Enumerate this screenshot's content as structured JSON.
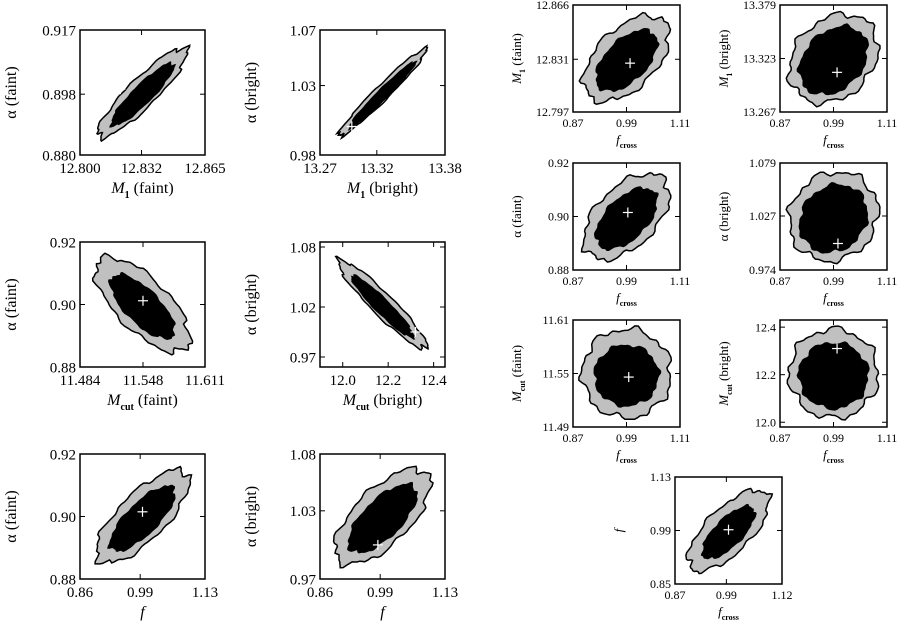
{
  "colors": {
    "outer_region": "#c0c0c0",
    "inner_region": "#000000",
    "marker": "#ffffff",
    "frame": "#000000"
  },
  "chart_data": [
    {
      "type": "contour",
      "id": "p1",
      "xlabel_main": "M",
      "xlabel_sub": "1",
      "xlabel_tail": " (faint)",
      "ylabel_main": "α",
      "ylabel_sub": "",
      "ylabel_tail": " (faint)",
      "xlim": [
        12.8,
        12.865
      ],
      "ylim": [
        0.88,
        0.917
      ],
      "xticks": [
        "12.800",
        "12.832",
        "12.865"
      ],
      "yticks": [
        "0.880",
        "0.898",
        "0.917"
      ],
      "marker": [
        12.821,
        0.8995
      ],
      "corr": 0.93,
      "outer_scale": 1.0,
      "inner_scale": 0.7
    },
    {
      "type": "contour",
      "id": "p2",
      "xlabel_main": "M",
      "xlabel_sub": "1",
      "xlabel_tail": " (bright)",
      "ylabel_main": "α",
      "ylabel_sub": "",
      "ylabel_tail": " (bright)",
      "xlim": [
        13.27,
        13.38
      ],
      "ylim": [
        0.98,
        1.07
      ],
      "xticks": [
        "13.27",
        "13.32",
        "13.38"
      ],
      "yticks": [
        "0.98",
        "1.03",
        "1.07"
      ],
      "marker": [
        13.298,
        1.0005
      ],
      "corr": 0.985,
      "outer_scale": 1.0,
      "inner_scale": 0.75
    },
    {
      "type": "contour",
      "id": "p3",
      "xlabel_main": "M",
      "xlabel_sub": "cut",
      "xlabel_tail": " (faint)",
      "ylabel_main": "α",
      "ylabel_sub": "",
      "ylabel_tail": " (faint)",
      "xlim": [
        11.484,
        11.611
      ],
      "ylim": [
        0.88,
        0.92
      ],
      "xticks": [
        "11.484",
        "11.548",
        "11.611"
      ],
      "yticks": [
        "0.88",
        "0.90",
        "0.92"
      ],
      "marker": [
        11.548,
        0.9012
      ],
      "corr": -0.75,
      "outer_scale": 1.0,
      "inner_scale": 0.68
    },
    {
      "type": "contour",
      "id": "p4",
      "xlabel_main": "M",
      "xlabel_sub": "cut",
      "xlabel_tail": " (bright)",
      "ylabel_main": "α",
      "ylabel_sub": "",
      "ylabel_tail": " (bright)",
      "xlim": [
        11.9,
        12.45
      ],
      "ylim": [
        0.96,
        1.085
      ],
      "xticks": [
        "12.0",
        "12.2",
        "12.4"
      ],
      "yticks": [
        "0.97",
        "1.02",
        "1.08"
      ],
      "marker": [
        12.32,
        0.995
      ],
      "corr": -0.96,
      "outer_scale": 1.0,
      "inner_scale": 0.7
    },
    {
      "type": "contour",
      "id": "p5",
      "xlabel_main": "f",
      "xlabel_sub": "",
      "xlabel_tail": "",
      "ylabel_main": "α",
      "ylabel_sub": "",
      "ylabel_tail": " (faint)",
      "xlim": [
        0.86,
        1.13
      ],
      "ylim": [
        0.88,
        0.92
      ],
      "xticks": [
        "0.86",
        "0.99",
        "1.13"
      ],
      "yticks": [
        "0.88",
        "0.90",
        "0.92"
      ],
      "marker": [
        0.995,
        0.9015
      ],
      "corr": 0.8,
      "outer_scale": 1.0,
      "inner_scale": 0.7
    },
    {
      "type": "contour",
      "id": "p6",
      "xlabel_main": "f",
      "xlabel_sub": "",
      "xlabel_tail": "",
      "ylabel_main": "α",
      "ylabel_sub": "",
      "ylabel_tail": " (bright)",
      "xlim": [
        0.86,
        1.13
      ],
      "ylim": [
        0.97,
        1.08
      ],
      "xticks": [
        "0.86",
        "0.99",
        "1.13"
      ],
      "yticks": [
        "0.97",
        "1.03",
        "1.08"
      ],
      "marker": [
        0.985,
        1.0
      ],
      "corr": 0.72,
      "outer_scale": 1.0,
      "inner_scale": 0.72
    },
    {
      "type": "contour",
      "id": "p7",
      "xlabel_main": "f",
      "xlabel_sub": "cross",
      "xlabel_tail": "",
      "ylabel_main": "M",
      "ylabel_sub": "1",
      "ylabel_tail": " (faint)",
      "xlim": [
        0.87,
        1.11
      ],
      "ylim": [
        12.797,
        12.866
      ],
      "xticks": [
        "0.87",
        "0.99",
        "1.11"
      ],
      "yticks": [
        "12.797",
        "12.831",
        "12.866"
      ],
      "marker": [
        0.998,
        12.8285
      ],
      "corr": 0.55,
      "outer_scale": 1.0,
      "inner_scale": 0.72
    },
    {
      "type": "contour",
      "id": "p8",
      "xlabel_main": "f",
      "xlabel_sub": "cross",
      "xlabel_tail": "",
      "ylabel_main": "M",
      "ylabel_sub": "1",
      "ylabel_tail": " (bright)",
      "xlim": [
        0.87,
        1.11
      ],
      "ylim": [
        13.267,
        13.379
      ],
      "xticks": [
        "0.87",
        "0.99",
        "1.11"
      ],
      "yticks": [
        "13.267",
        "13.323",
        "13.379"
      ],
      "marker": [
        0.998,
        13.3085
      ],
      "corr": 0.25,
      "outer_scale": 1.0,
      "inner_scale": 0.78
    },
    {
      "type": "contour",
      "id": "p9",
      "xlabel_main": "f",
      "xlabel_sub": "cross",
      "xlabel_tail": "",
      "ylabel_main": "α",
      "ylabel_sub": "",
      "ylabel_tail": " (faint)",
      "xlim": [
        0.87,
        1.11
      ],
      "ylim": [
        0.88,
        0.92
      ],
      "xticks": [
        "0.87",
        "0.99",
        "1.11"
      ],
      "yticks": [
        "0.88",
        "0.90",
        "0.92"
      ],
      "marker": [
        0.993,
        0.9015
      ],
      "corr": 0.55,
      "outer_scale": 1.0,
      "inner_scale": 0.72
    },
    {
      "type": "contour",
      "id": "p10",
      "xlabel_main": "f",
      "xlabel_sub": "cross",
      "xlabel_tail": "",
      "ylabel_main": "α",
      "ylabel_sub": "",
      "ylabel_tail": " (bright)",
      "xlim": [
        0.87,
        1.11
      ],
      "ylim": [
        0.974,
        1.079
      ],
      "xticks": [
        "0.87",
        "0.99",
        "1.11"
      ],
      "yticks": [
        "0.974",
        "1.027",
        "1.079"
      ],
      "marker": [
        1.0,
        1.0
      ],
      "corr": 0.1,
      "outer_scale": 1.0,
      "inner_scale": 0.78
    },
    {
      "type": "contour",
      "id": "p11",
      "xlabel_main": "f",
      "xlabel_sub": "cross",
      "xlabel_tail": "",
      "ylabel_main": "M",
      "ylabel_sub": "cut",
      "ylabel_tail": " (faint)",
      "xlim": [
        0.87,
        1.11
      ],
      "ylim": [
        11.49,
        11.61
      ],
      "xticks": [
        "0.87",
        "0.99",
        "1.11"
      ],
      "yticks": [
        "11.49",
        "11.55",
        "11.61"
      ],
      "marker": [
        0.995,
        11.546
      ],
      "corr": 0.0,
      "outer_scale": 1.0,
      "inner_scale": 0.72
    },
    {
      "type": "contour",
      "id": "p12",
      "xlabel_main": "f",
      "xlabel_sub": "cross",
      "xlabel_tail": "",
      "ylabel_main": "M",
      "ylabel_sub": "cut",
      "ylabel_tail": " (bright)",
      "xlim": [
        0.87,
        1.11
      ],
      "ylim": [
        11.98,
        12.43
      ],
      "xticks": [
        "0.87",
        "0.99",
        "1.11"
      ],
      "yticks": [
        "12.0",
        "12.2",
        "12.4"
      ],
      "marker": [
        0.998,
        12.31
      ],
      "corr": 0.0,
      "outer_scale": 1.0,
      "inner_scale": 0.78
    },
    {
      "type": "contour",
      "id": "p13",
      "xlabel_main": "f",
      "xlabel_sub": "cross",
      "xlabel_tail": "",
      "ylabel_main": "f",
      "ylabel_sub": "",
      "ylabel_tail": "",
      "xlim": [
        0.87,
        1.12
      ],
      "ylim": [
        0.85,
        1.13
      ],
      "xticks": [
        "0.87",
        "0.99",
        "1.12"
      ],
      "yticks": [
        "0.85",
        "0.99",
        "1.13"
      ],
      "marker": [
        0.995,
        0.992
      ],
      "corr": 0.75,
      "outer_scale": 1.0,
      "inner_scale": 0.65
    }
  ]
}
